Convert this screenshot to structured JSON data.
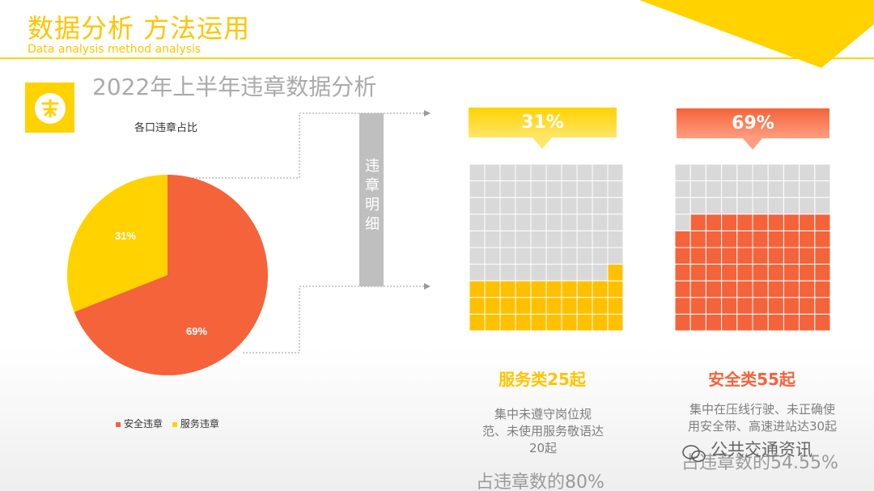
{
  "header": {
    "title": "数据分析  方法运用",
    "subtitle": "Data analysis method analysis"
  },
  "heading": "2022年上半年违章数据分析",
  "pie": {
    "title": "各口违章占比",
    "labels": [
      "69%",
      "31%"
    ],
    "legend": [
      "安全违章",
      "服务违章"
    ]
  },
  "colors": {
    "accent_yellow": "#FFD200",
    "accent_orange": "#F4633A",
    "grid_gray": "#D9D9D9"
  },
  "chart_data": {
    "type": "pie",
    "title": "各口违章占比",
    "categories": [
      "安全违章",
      "服务违章"
    ],
    "values": [
      69,
      31
    ],
    "legend_position": "bottom"
  },
  "side_label": "违章明细",
  "panels": [
    {
      "percent": "31%",
      "filled_cells": 31,
      "category": "服务类25起",
      "description_lines": [
        "集中未遵守岗位规",
        "范、未使用服务敬语达",
        "20起"
      ],
      "share": "占违章数的80%"
    },
    {
      "percent": "69%",
      "filled_cells": 69,
      "category": "安全类55起",
      "description_lines": [
        "集中在压线行驶、未正确使",
        "用安全带、高速进站达30起"
      ],
      "share": "占违章数的54.55%"
    }
  ],
  "watermark": "公共交通资讯"
}
